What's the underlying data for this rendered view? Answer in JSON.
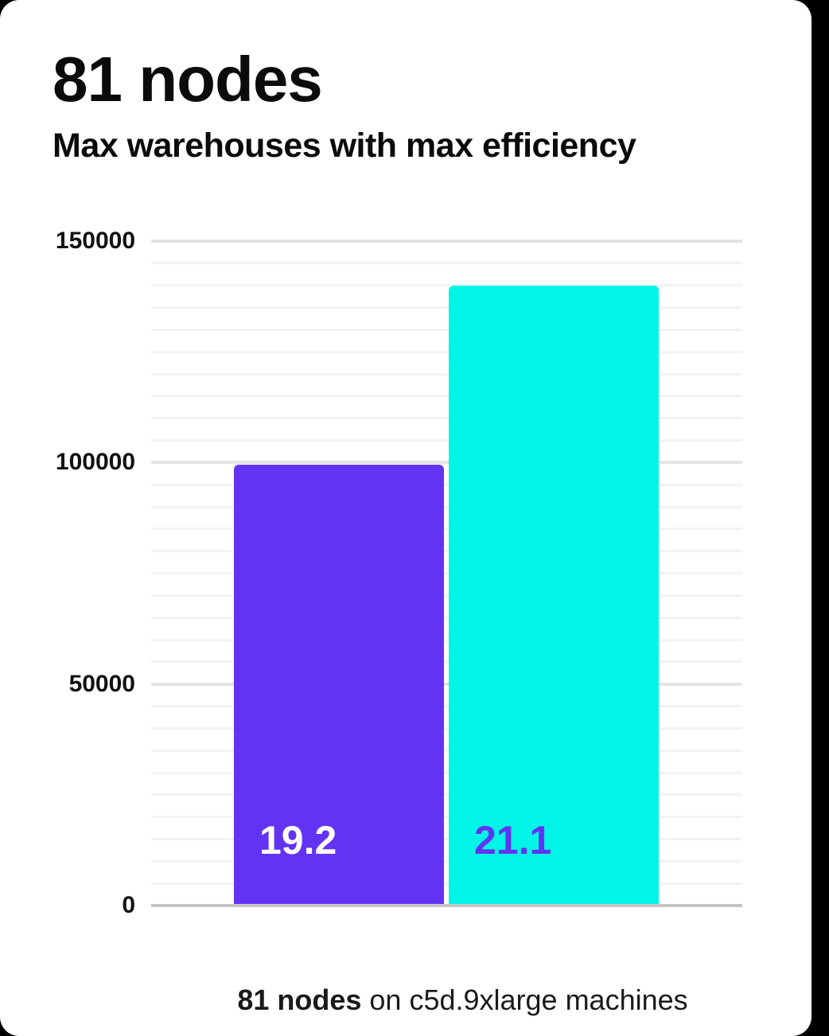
{
  "page": {
    "background_color": "#000000",
    "card_color": "#ffffff"
  },
  "header": {
    "title": "81 nodes",
    "subtitle": "Max warehouses with max efficiency"
  },
  "chart_data": {
    "type": "bar",
    "title": "81 nodes",
    "subtitle": "Max warehouses with max efficiency",
    "categories": [
      "19.2",
      "21.1"
    ],
    "values": [
      99500,
      140000
    ],
    "bar_labels": [
      "19.2",
      "21.1"
    ],
    "bar_colors": [
      "#6333f3",
      "#00f5e6"
    ],
    "bar_label_colors": [
      "#ffffff",
      "#6333f3"
    ],
    "xlabel": "",
    "ylabel": "",
    "ylim": [
      0,
      150000
    ],
    "yticks": [
      0,
      50000,
      100000,
      150000
    ],
    "ytick_labels": [
      "0",
      "50000",
      "100000",
      "150000"
    ],
    "minor_grid_step": 5000,
    "grid": true,
    "legend": false,
    "colors": {
      "minor_gridline": "#f2f2f2",
      "major_gridline": "#e3e3e3",
      "axis_baseline": "#c3c3c3",
      "tick_label": "#111111"
    }
  },
  "caption": {
    "bold": "81 nodes",
    "rest": " on c5d.9xlarge machines"
  }
}
